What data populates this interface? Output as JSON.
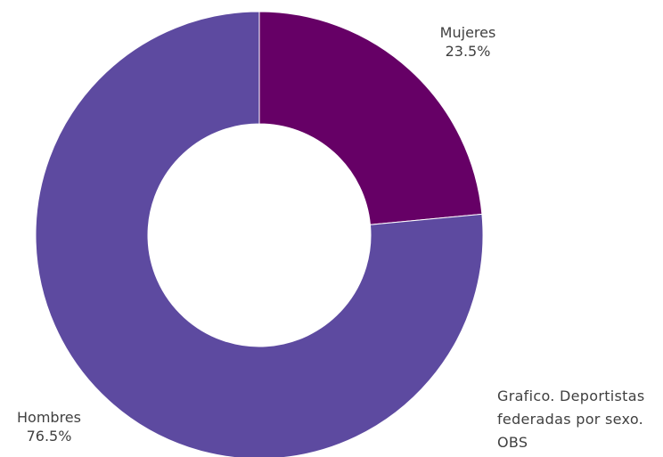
{
  "chart_data": {
    "type": "pie",
    "donut": true,
    "categories": [
      "Mujeres",
      "Hombres"
    ],
    "values": [
      23.5,
      76.5
    ],
    "value_labels": [
      "23.5%",
      "76.5%"
    ],
    "colors": [
      "#660066",
      "#5d4aa0"
    ],
    "legend": "none"
  },
  "caption": {
    "line1": "Grafico. Deportistas",
    "line2": "federadas por sexo.",
    "line3": "OBS"
  }
}
